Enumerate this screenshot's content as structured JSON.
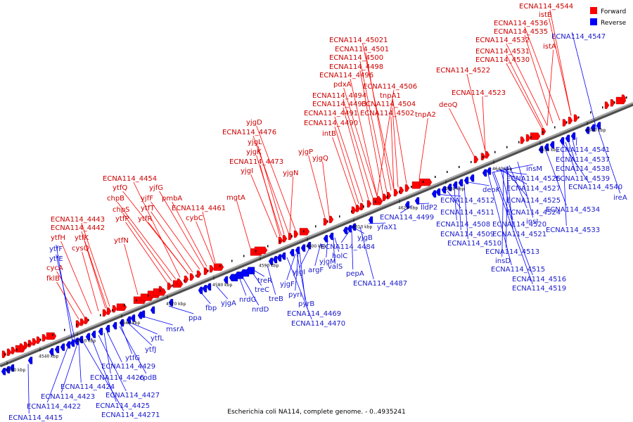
{
  "caption": "Escherichia coli NA114, complete genome. - 0..4935241",
  "legend": [
    {
      "label": "Forward",
      "color": "#ff0000"
    },
    {
      "label": "Reverse",
      "color": "#0000ff"
    }
  ],
  "colors": {
    "forward": "#ff0000",
    "reverse": "#0000ff",
    "backbone": "#808080",
    "text_forward": "#cc0000",
    "text_reverse": "#1a1acc"
  },
  "ticks": [
    "4530 kbp",
    "4540 kbp",
    "4550 kbp",
    "4560 kbp",
    "4570 kbp",
    "4580 kbp",
    "4590 kbp",
    "4600 kbp",
    "4610 kbp",
    "4620 kbp",
    "4630 kbp",
    "4640 kbp",
    "4650 kbp",
    "4660 kbp"
  ],
  "forward_labels": [
    "ECNA114_4544",
    "istB",
    "ECNA114_4536",
    "ECNA114_4535",
    "ECNA114_4532",
    "istA",
    "ECNA114_4531",
    "ECNA114_4530",
    "ECNA114_4522",
    "ECNA114_4523",
    "deoQ",
    "ECNA114_45021",
    "ECNA114_4501",
    "ECNA114_4500",
    "ECNA114_4498",
    "ECNA114_4496",
    "pdxA",
    "ECNA114_4506",
    "ECNA114_4494",
    "tnpA1",
    "ECNA114_4493",
    "ECNA114_4504",
    "ECNA114_4491",
    "ECNA114_4502",
    "tnpA2",
    "ECNA114_4490",
    "intB",
    "yjgD",
    "ECNA114_4476",
    "yjgL",
    "yjgK",
    "ECNA114_4473",
    "yjgI",
    "yjgN",
    "yjgP",
    "yjgQ",
    "ECNA114_4454",
    "ytfQ",
    "yjfG",
    "chpB",
    "yjfF",
    "pmbA",
    "chpS",
    "ytfT",
    "ECNA114_4461",
    "mgtA",
    "ytfP",
    "ytfR",
    "cybC",
    "ECNA114_4443",
    "ECNA114_4442",
    "ytfH",
    "ytfK",
    "cysQ",
    "ytfN",
    "cycA",
    "fklB"
  ],
  "reverse_labels": [
    "ECNA114_4547",
    "ECNA114_4541",
    "ECNA114_4537",
    "ECNA114_4538",
    "ECNA114_4539",
    "ECNA114_4540",
    "ireA",
    "insM",
    "ECNA114_4526",
    "ECNA114_4527",
    "deoK",
    "ECNA114_4525",
    "ECNA114_4512",
    "ECNA114_4511",
    "ECNA114_4524",
    "ECNA114_4534",
    "ECNA114_4508",
    "ECNA114_4520",
    "insI",
    "ECNA114_4509",
    "ECNA114_4521",
    "ECNA114_4533",
    "ECNA114_4510",
    "ECNA114_4513",
    "insD",
    "ECNA114_4515",
    "ECNA114_4516",
    "ECNA114_4519",
    "lldP2",
    "ECNA114_4499",
    "yfaX1",
    "yjgB",
    "ECNA114_4484",
    "yjgM",
    "holC",
    "argF",
    "valS",
    "yjgI",
    "pepA",
    "yjgF",
    "pyrI",
    "pyrB",
    "ECNA114_4487",
    "ECNA114_4469",
    "ECNA114_4470",
    "treR",
    "treC",
    "treB",
    "nrdG",
    "nrdD",
    "yjgA",
    "fbp",
    "ppa",
    "msrA",
    "ytfL",
    "ytfJ",
    "ytfG",
    "cpdB",
    "ECNA114_4429",
    "ECNA114_4426",
    "ECNA114_4424",
    "ECNA114_4427",
    "ECNA114_4423",
    "ECNA114_4425",
    "ECNA114_4422",
    "ECNA114_44271",
    "ECNA114_4415",
    "ytfF",
    "ytfE"
  ]
}
